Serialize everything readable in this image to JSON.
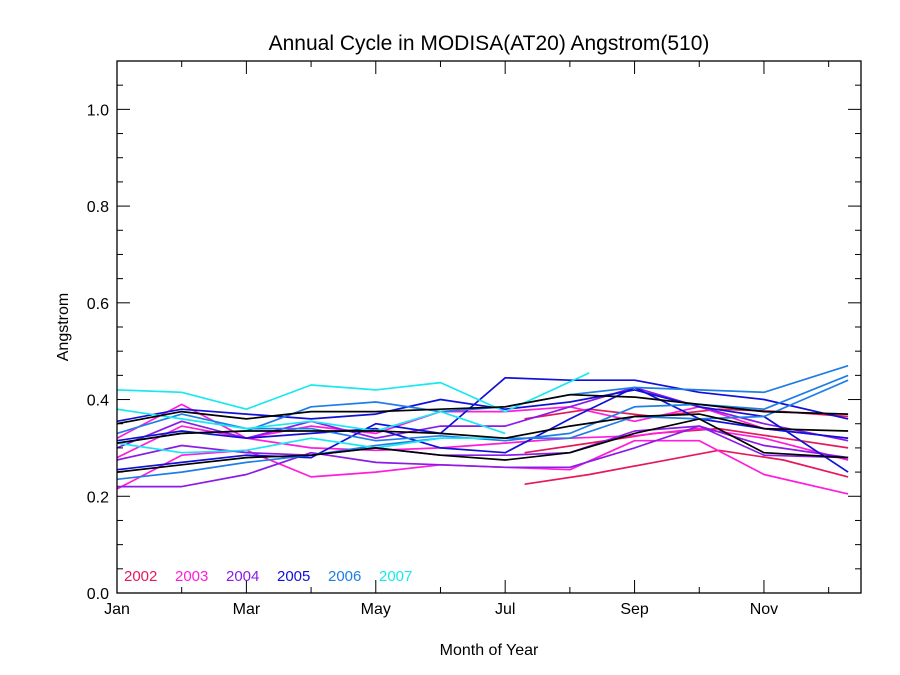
{
  "chart_data": {
    "type": "line",
    "title": "Annual Cycle in MODISA(AT20) Angstrom(510)",
    "xlabel": "Month of Year",
    "ylabel": "Angstrom",
    "xlim": [
      1,
      12.5
    ],
    "ylim": [
      0.0,
      1.1
    ],
    "x_ticks": [
      {
        "value": 1,
        "label": "Jan"
      },
      {
        "value": 3,
        "label": "Mar"
      },
      {
        "value": 5,
        "label": "May"
      },
      {
        "value": 7,
        "label": "Jul"
      },
      {
        "value": 9,
        "label": "Sep"
      },
      {
        "value": 11,
        "label": "Nov"
      }
    ],
    "y_ticks": [
      {
        "value": 0.0,
        "label": "0.0"
      },
      {
        "value": 0.2,
        "label": "0.2"
      },
      {
        "value": 0.4,
        "label": "0.4"
      },
      {
        "value": 0.6,
        "label": "0.6"
      },
      {
        "value": 0.8,
        "label": "0.8"
      },
      {
        "value": 1.0,
        "label": "1.0"
      }
    ],
    "legend": {
      "placement": "bottom-left",
      "entries": [
        {
          "label": "2002",
          "color": "#e6195a"
        },
        {
          "label": "2003",
          "color": "#ff1cdc"
        },
        {
          "label": "2004",
          "color": "#8a1ce6"
        },
        {
          "label": "2005",
          "color": "#1010d8"
        },
        {
          "label": "2006",
          "color": "#1e7ee6"
        },
        {
          "label": "2007",
          "color": "#18e8f0"
        }
      ]
    },
    "series": [
      {
        "color": "#e6195a",
        "x": [
          7.3,
          8.3,
          9.3,
          10.3,
          11.3,
          12.3
        ],
        "y": [
          0.225,
          0.245,
          0.27,
          0.295,
          0.275,
          0.24
        ]
      },
      {
        "color": "#e6195a",
        "x": [
          7.3,
          8.3,
          9.3,
          10.3,
          11.3,
          12.3
        ],
        "y": [
          0.36,
          0.38,
          0.365,
          0.38,
          0.375,
          0.365
        ]
      },
      {
        "color": "#e6195a",
        "x": [
          7.3,
          8.3,
          9.3,
          10.3,
          11.3,
          12.3
        ],
        "y": [
          0.29,
          0.31,
          0.33,
          0.34,
          0.32,
          0.3
        ]
      },
      {
        "color": "#ff1cdc",
        "x": [
          1,
          2,
          3,
          4,
          5,
          6,
          7,
          8,
          9,
          10,
          11,
          12.3
        ],
        "y": [
          0.215,
          0.285,
          0.295,
          0.24,
          0.25,
          0.265,
          0.26,
          0.255,
          0.315,
          0.315,
          0.245,
          0.205
        ]
      },
      {
        "color": "#ff1cdc",
        "x": [
          1,
          2,
          3,
          4,
          5,
          6,
          7,
          8,
          9,
          10,
          11,
          12.3
        ],
        "y": [
          0.28,
          0.345,
          0.32,
          0.345,
          0.33,
          0.375,
          0.375,
          0.385,
          0.355,
          0.385,
          0.34,
          0.32
        ]
      },
      {
        "color": "#ff1cdc",
        "x": [
          1,
          2,
          3,
          4,
          5,
          6,
          7,
          8,
          9,
          10,
          11,
          12.3
        ],
        "y": [
          0.32,
          0.39,
          0.32,
          0.3,
          0.295,
          0.3,
          0.31,
          0.32,
          0.325,
          0.34,
          0.32,
          0.275
        ]
      },
      {
        "color": "#8a1ce6",
        "x": [
          1,
          2,
          3,
          4,
          5,
          6,
          7,
          8,
          9,
          10,
          11,
          12.3
        ],
        "y": [
          0.22,
          0.22,
          0.245,
          0.29,
          0.27,
          0.265,
          0.26,
          0.26,
          0.3,
          0.345,
          0.285,
          0.28
        ]
      },
      {
        "color": "#8a1ce6",
        "x": [
          1,
          2,
          3,
          4,
          5,
          6,
          7,
          8,
          9,
          10,
          11,
          12.3
        ],
        "y": [
          0.275,
          0.305,
          0.29,
          0.285,
          0.3,
          0.285,
          0.285,
          0.29,
          0.335,
          0.345,
          0.305,
          0.28
        ]
      },
      {
        "color": "#8a1ce6",
        "x": [
          1,
          2,
          3,
          4,
          5,
          6,
          7,
          8,
          9,
          10,
          11,
          12.3
        ],
        "y": [
          0.3,
          0.355,
          0.32,
          0.355,
          0.32,
          0.345,
          0.345,
          0.385,
          0.425,
          0.385,
          0.35,
          0.315
        ]
      },
      {
        "color": "#1010d8",
        "x": [
          1,
          2,
          3,
          4,
          5,
          6,
          7,
          8,
          9,
          10,
          11,
          12.3
        ],
        "y": [
          0.255,
          0.27,
          0.285,
          0.28,
          0.35,
          0.33,
          0.445,
          0.44,
          0.44,
          0.415,
          0.4,
          0.36
        ]
      },
      {
        "color": "#1010d8",
        "x": [
          1,
          2,
          3,
          4,
          5,
          6,
          7,
          8,
          9,
          10,
          11,
          12.3
        ],
        "y": [
          0.355,
          0.38,
          0.37,
          0.36,
          0.37,
          0.4,
          0.38,
          0.395,
          0.42,
          0.385,
          0.365,
          0.25
        ]
      },
      {
        "color": "#1010d8",
        "x": [
          1,
          2,
          3,
          4,
          5,
          6,
          7,
          8,
          9,
          10,
          11,
          12.3
        ],
        "y": [
          0.315,
          0.335,
          0.32,
          0.33,
          0.34,
          0.3,
          0.29,
          0.36,
          0.425,
          0.36,
          0.34,
          0.32
        ]
      },
      {
        "color": "#1e7ee6",
        "x": [
          1,
          2,
          3,
          4,
          5,
          6,
          7,
          8,
          9,
          10,
          11,
          12.3
        ],
        "y": [
          0.235,
          0.25,
          0.27,
          0.285,
          0.305,
          0.32,
          0.32,
          0.32,
          0.365,
          0.36,
          0.365,
          0.44
        ]
      },
      {
        "color": "#1e7ee6",
        "x": [
          1,
          2,
          3,
          4,
          5,
          6,
          7,
          8,
          9,
          10,
          11,
          12.3
        ],
        "y": [
          0.31,
          0.33,
          0.335,
          0.385,
          0.395,
          0.375,
          0.385,
          0.41,
          0.425,
          0.42,
          0.415,
          0.47
        ]
      },
      {
        "color": "#1e7ee6",
        "x": [
          1,
          2,
          3,
          4,
          5,
          6,
          7,
          8,
          9,
          10,
          11,
          12.3
        ],
        "y": [
          0.33,
          0.37,
          0.34,
          0.34,
          0.315,
          0.325,
          0.315,
          0.33,
          0.385,
          0.39,
          0.38,
          0.45
        ]
      },
      {
        "color": "#18e8f0",
        "x": [
          1,
          2,
          3,
          4,
          5,
          6,
          7,
          8.3
        ],
        "y": [
          0.42,
          0.415,
          0.38,
          0.43,
          0.42,
          0.435,
          0.375,
          0.455
        ]
      },
      {
        "color": "#18e8f0",
        "x": [
          1,
          2,
          3,
          4,
          5,
          6,
          7
        ],
        "y": [
          0.38,
          0.36,
          0.34,
          0.355,
          0.335,
          0.375,
          0.33
        ]
      },
      {
        "color": "#18e8f0",
        "x": [
          1,
          2,
          3,
          4,
          5,
          6,
          7
        ],
        "y": [
          0.31,
          0.29,
          0.295,
          0.32,
          0.3,
          0.32,
          0.32
        ]
      },
      {
        "color": "#000000",
        "x": [
          1,
          2,
          3,
          4,
          5,
          6,
          7,
          8,
          9,
          10,
          11,
          12.3
        ],
        "y": [
          0.25,
          0.265,
          0.28,
          0.285,
          0.3,
          0.285,
          0.275,
          0.29,
          0.33,
          0.36,
          0.29,
          0.28
        ]
      },
      {
        "color": "#000000",
        "x": [
          1,
          2,
          3,
          4,
          5,
          6,
          7,
          8,
          9,
          10,
          11,
          12.3
        ],
        "y": [
          0.35,
          0.375,
          0.36,
          0.375,
          0.375,
          0.38,
          0.385,
          0.41,
          0.405,
          0.39,
          0.375,
          0.37
        ]
      },
      {
        "color": "#000000",
        "x": [
          1,
          2,
          3,
          4,
          5,
          6,
          7,
          8,
          9,
          10,
          11,
          12.3
        ],
        "y": [
          0.31,
          0.33,
          0.335,
          0.335,
          0.335,
          0.33,
          0.32,
          0.345,
          0.365,
          0.37,
          0.34,
          0.335
        ]
      }
    ]
  }
}
